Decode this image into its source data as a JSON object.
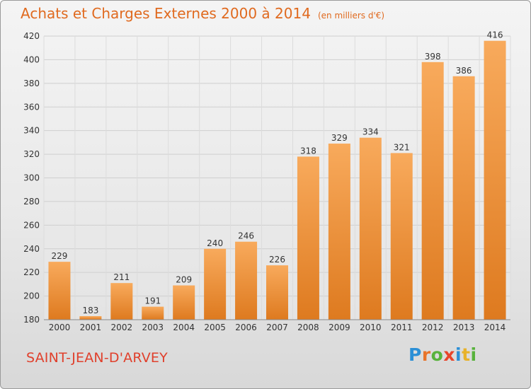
{
  "header": {
    "title": "Achats et Charges Externes 2000 à 2014",
    "subtitle": "(en milliers d'€)"
  },
  "footer": {
    "commune": "SAINT-JEAN-D'ARVEY",
    "logo": "Proxiti",
    "logo_letters": [
      "P",
      "r",
      "o",
      "x",
      "i",
      "t",
      "i"
    ]
  },
  "chart_data": {
    "type": "bar",
    "categories": [
      "2000",
      "2001",
      "2002",
      "2003",
      "2004",
      "2005",
      "2006",
      "2007",
      "2008",
      "2009",
      "2010",
      "2011",
      "2012",
      "2013",
      "2014"
    ],
    "values": [
      229,
      183,
      211,
      191,
      209,
      240,
      246,
      226,
      318,
      329,
      334,
      321,
      398,
      386,
      416
    ],
    "title": "Achats et Charges Externes 2000 à 2014",
    "xlabel": "",
    "ylabel": "",
    "ylim": [
      180,
      420
    ],
    "yticks": [
      180,
      200,
      220,
      240,
      260,
      280,
      300,
      320,
      340,
      360,
      380,
      400,
      420
    ],
    "grid": true,
    "data_labels": true,
    "colors": {
      "bar_light": "#f7a65a",
      "bar_dark": "#e07b22",
      "grid": "#cfcfcf",
      "axis_text": "#333333"
    }
  }
}
